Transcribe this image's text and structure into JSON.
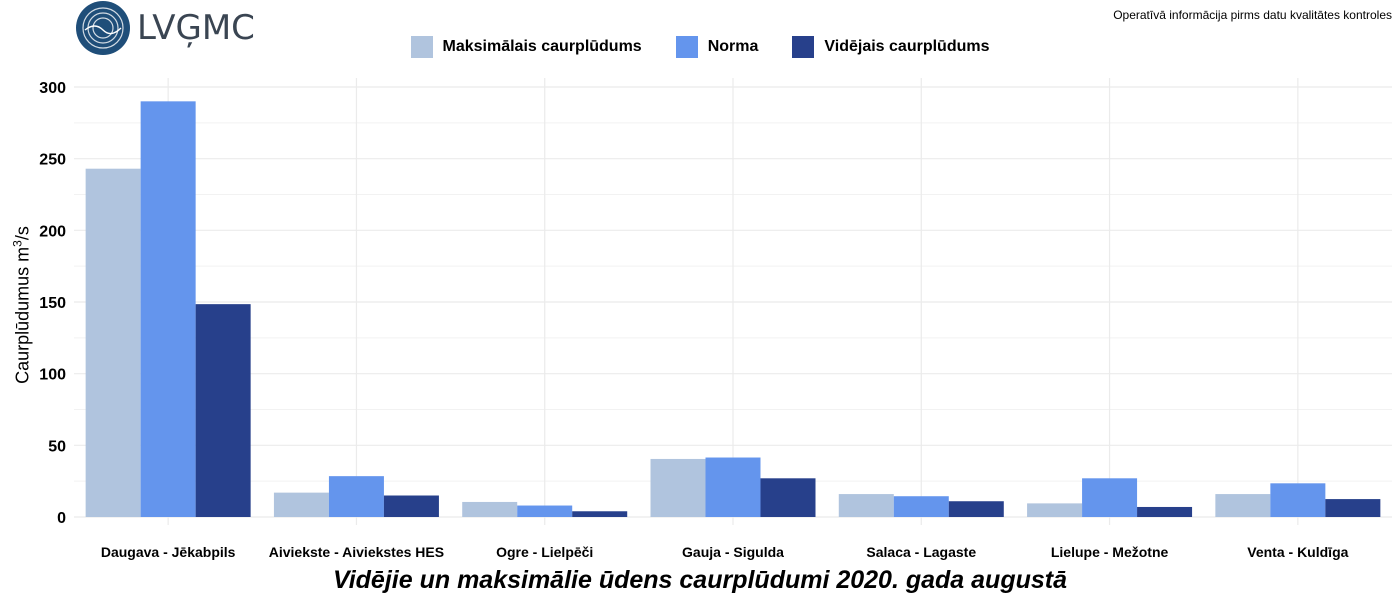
{
  "header": {
    "logo_text": "LVĢMC",
    "notice": "Operatīvā informācija pirms datu kvalitātes kontroles"
  },
  "colors": {
    "max": "#b0c4de",
    "norm": "#6495ed",
    "avg": "#27408b",
    "grid": "#ebebeb",
    "logo": "#1f4e79"
  },
  "chart_data": {
    "type": "bar",
    "title": "Vidējie un maksimālie ūdens caurplūdumi 2020. gada augustā",
    "ylabel": "Caurplūdumus  m",
    "ylabel_sup": "3",
    "ylabel_tail": "/s",
    "ylim": [
      0,
      300
    ],
    "yticks": [
      0,
      50,
      100,
      150,
      200,
      250,
      300
    ],
    "categories": [
      "Daugava - Jēkabpils",
      "Aiviekste - Aiviekstes HES",
      "Ogre - Lielpēči",
      "Gauja - Sigulda",
      "Salaca - Lagaste",
      "Lielupe - Mežotne",
      "Venta - Kuldīga"
    ],
    "series": [
      {
        "name": "Maksimālais caurplūdums",
        "color": "#b0c4de",
        "values": [
          243,
          17,
          10.5,
          40.5,
          16,
          9.5,
          16
        ]
      },
      {
        "name": "Norma",
        "color": "#6495ed",
        "values": [
          290,
          28.5,
          8,
          41.5,
          14.5,
          27,
          23.5
        ]
      },
      {
        "name": "Vidējais caurplūdums",
        "color": "#27408b",
        "values": [
          148.5,
          15,
          4,
          27,
          11,
          7,
          12.5
        ]
      }
    ],
    "legend_position": "top",
    "grid": true
  }
}
